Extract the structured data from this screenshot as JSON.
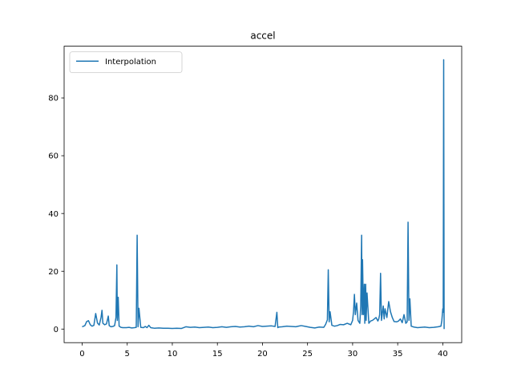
{
  "chart_data": {
    "type": "line",
    "title": "accel",
    "xlabel": "",
    "ylabel": "",
    "xlim": [
      -2.0,
      42.1
    ],
    "ylim": [
      -4.7,
      97.9
    ],
    "xticks": [
      0,
      5,
      10,
      15,
      20,
      25,
      30,
      35,
      40
    ],
    "yticks": [
      0,
      20,
      40,
      60,
      80
    ],
    "grid": false,
    "legend_position": "upper-left",
    "colors": {
      "series": "#1f77b4",
      "axes": "#000000",
      "legend_border": "#cccccc"
    },
    "series": [
      {
        "name": "Interpolation",
        "x": [
          0.0,
          0.3,
          0.5,
          0.7,
          0.9,
          1.1,
          1.3,
          1.5,
          1.7,
          1.9,
          2.1,
          2.2,
          2.3,
          2.5,
          2.7,
          2.9,
          3.0,
          3.2,
          3.4,
          3.6,
          3.75,
          3.85,
          3.9,
          4.0,
          4.1,
          4.3,
          4.5,
          4.7,
          4.9,
          5.2,
          5.5,
          5.8,
          6.0,
          6.1,
          6.2,
          6.3,
          6.5,
          6.8,
          7.0,
          7.2,
          7.4,
          7.6,
          7.8,
          8.0,
          8.5,
          9.0,
          9.5,
          10.0,
          10.5,
          11.0,
          11.5,
          12.0,
          12.5,
          13.0,
          13.5,
          14.0,
          14.5,
          15.0,
          15.5,
          16.0,
          16.5,
          17.0,
          17.5,
          18.0,
          18.5,
          19.0,
          19.5,
          20.0,
          20.5,
          21.0,
          21.4,
          21.6,
          21.7,
          21.8,
          22.2,
          22.7,
          23.2,
          23.7,
          24.0,
          24.3,
          24.8,
          25.3,
          25.8,
          26.3,
          26.8,
          27.0,
          27.2,
          27.3,
          27.4,
          27.5,
          27.7,
          28.0,
          28.3,
          28.6,
          29.0,
          29.4,
          29.8,
          30.0,
          30.1,
          30.2,
          30.3,
          30.45,
          30.6,
          30.8,
          30.9,
          31.0,
          31.05,
          31.1,
          31.2,
          31.3,
          31.35,
          31.45,
          31.5,
          31.6,
          31.8,
          32.0,
          32.2,
          32.4,
          32.6,
          32.8,
          32.9,
          33.0,
          33.1,
          33.2,
          33.4,
          33.5,
          33.6,
          33.8,
          34.0,
          34.2,
          34.4,
          34.6,
          34.9,
          35.1,
          35.3,
          35.5,
          35.7,
          35.9,
          36.05,
          36.15,
          36.25,
          36.35,
          36.5,
          36.8,
          37.2,
          37.6,
          38.0,
          38.5,
          39.0,
          39.5,
          39.8,
          39.9,
          40.0,
          40.05,
          40.1,
          40.15
        ],
        "y": [
          0.8,
          1.2,
          2.6,
          2.9,
          1.5,
          1.0,
          1.3,
          5.4,
          2.1,
          1.4,
          4.1,
          6.5,
          2.0,
          1.5,
          1.8,
          4.5,
          1.2,
          0.8,
          0.9,
          1.2,
          4.0,
          22.2,
          3.0,
          11.0,
          1.0,
          0.6,
          0.5,
          0.5,
          0.5,
          0.6,
          0.4,
          0.5,
          0.6,
          32.5,
          0.8,
          7.2,
          0.6,
          0.5,
          0.9,
          0.5,
          1.3,
          0.5,
          0.4,
          0.3,
          0.4,
          0.3,
          0.3,
          0.2,
          0.3,
          0.2,
          0.8,
          0.6,
          0.7,
          0.5,
          0.6,
          0.7,
          0.5,
          0.6,
          0.8,
          0.6,
          0.8,
          0.9,
          0.7,
          0.8,
          1.0,
          0.8,
          1.2,
          0.9,
          1.0,
          1.1,
          0.9,
          5.8,
          0.5,
          0.7,
          0.8,
          1.0,
          0.9,
          0.8,
          1.0,
          1.2,
          0.9,
          0.6,
          0.4,
          0.7,
          0.6,
          1.6,
          3.2,
          20.5,
          2.5,
          6.0,
          1.3,
          1.0,
          1.2,
          1.6,
          1.5,
          2.0,
          1.5,
          3.0,
          6.0,
          12.0,
          5.0,
          9.0,
          3.0,
          2.0,
          8.0,
          32.5,
          5.0,
          24.0,
          5.0,
          15.5,
          2.0,
          15.5,
          3.0,
          12.5,
          2.0,
          2.8,
          3.0,
          3.5,
          4.0,
          2.8,
          3.5,
          5.0,
          19.3,
          3.0,
          8.0,
          3.5,
          7.0,
          4.0,
          9.5,
          6.0,
          4.0,
          2.6,
          2.5,
          2.8,
          3.5,
          2.2,
          5.0,
          2.0,
          2.5,
          37.0,
          3.0,
          10.5,
          1.0,
          0.7,
          0.5,
          0.6,
          0.7,
          0.5,
          0.6,
          0.8,
          1.0,
          3.0,
          7.0,
          5.8,
          93.2,
          0.0
        ]
      }
    ]
  }
}
